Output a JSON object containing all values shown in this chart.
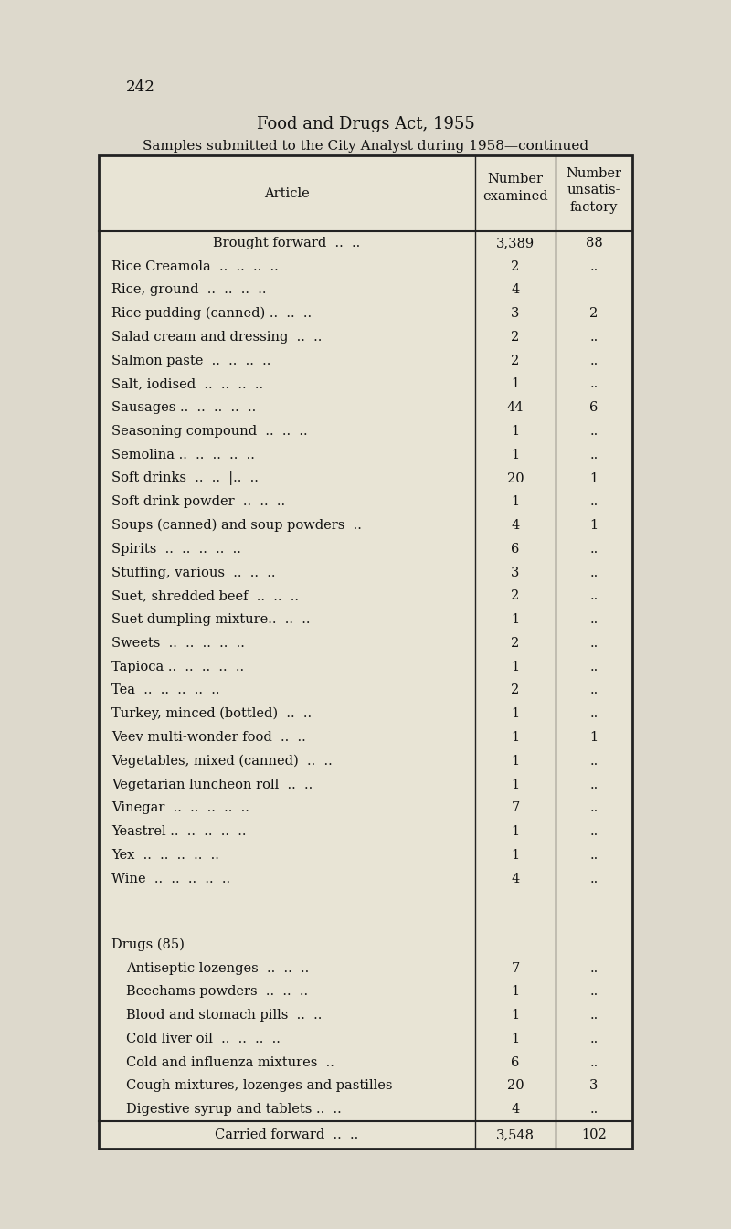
{
  "page_number": "242",
  "title_line1": "Food and Drugs Act, 1955",
  "title_line2": "Samples submitted to the City Analyst during 1958—continued",
  "rows": [
    {
      "article": "Brought forward",
      "dots": "  ..  ..",
      "examined": "3,389",
      "unsatisfactory": "88",
      "indent": 0,
      "bold": false,
      "center_article": true
    },
    {
      "article": "Rice Creamola",
      "dots": "  ..  ..  ..  ..",
      "examined": "2",
      "unsatisfactory": "..",
      "indent": 0,
      "bold": false,
      "center_article": false
    },
    {
      "article": "Rice, ground",
      "dots": "  ..  ..  ..  ..",
      "examined": "4",
      "unsatisfactory": "",
      "indent": 0,
      "bold": false,
      "center_article": false
    },
    {
      "article": "Rice pudding (canned) ..",
      "dots": "  ..  ..",
      "examined": "3",
      "unsatisfactory": "2",
      "indent": 0,
      "bold": false,
      "center_article": false
    },
    {
      "article": "Salad cream and dressing",
      "dots": "  ..  ..",
      "examined": "2",
      "unsatisfactory": "..",
      "indent": 0,
      "bold": false,
      "center_article": false
    },
    {
      "article": "Salmon paste",
      "dots": "  ..  ..  ..  ..",
      "examined": "2",
      "unsatisfactory": "..",
      "indent": 0,
      "bold": false,
      "center_article": false
    },
    {
      "article": "Salt, iodised",
      "dots": "  ..  ..  ..  ..",
      "examined": "1",
      "unsatisfactory": "..",
      "indent": 0,
      "bold": false,
      "center_article": false
    },
    {
      "article": "Sausages ..",
      "dots": "  ..  ..  ..  ..",
      "examined": "44",
      "unsatisfactory": "6",
      "indent": 0,
      "bold": false,
      "center_article": false
    },
    {
      "article": "Seasoning compound",
      "dots": "  ..  ..  ..",
      "examined": "1",
      "unsatisfactory": "..",
      "indent": 0,
      "bold": false,
      "center_article": false
    },
    {
      "article": "Semolina ..",
      "dots": "  ..  ..  ..  ..",
      "examined": "1",
      "unsatisfactory": "..",
      "indent": 0,
      "bold": false,
      "center_article": false
    },
    {
      "article": "Soft drinks",
      "dots": "  ..  ..  |..  ..",
      "examined": "20",
      "unsatisfactory": "1",
      "indent": 0,
      "bold": false,
      "center_article": false
    },
    {
      "article": "Soft drink powder",
      "dots": "  ..  ..  ..",
      "examined": "1",
      "unsatisfactory": "..",
      "indent": 0,
      "bold": false,
      "center_article": false
    },
    {
      "article": "Soups (canned) and soup powders",
      "dots": "  ..",
      "examined": "4",
      "unsatisfactory": "1",
      "indent": 0,
      "bold": false,
      "center_article": false
    },
    {
      "article": "Spirits",
      "dots": "  ..  ..  ..  ..  ..",
      "examined": "6",
      "unsatisfactory": "..",
      "indent": 0,
      "bold": false,
      "center_article": false
    },
    {
      "article": "Stuffing, various",
      "dots": "  ..  ..  ..",
      "examined": "3",
      "unsatisfactory": "..",
      "indent": 0,
      "bold": false,
      "center_article": false
    },
    {
      "article": "Suet, shredded beef",
      "dots": "  ..  ..  ..",
      "examined": "2",
      "unsatisfactory": "..",
      "indent": 0,
      "bold": false,
      "center_article": false
    },
    {
      "article": "Suet dumpling mixture..",
      "dots": "  ..  ..",
      "examined": "1",
      "unsatisfactory": "..",
      "indent": 0,
      "bold": false,
      "center_article": false
    },
    {
      "article": "Sweets",
      "dots": "  ..  ..  ..  ..  ..",
      "examined": "2",
      "unsatisfactory": "..",
      "indent": 0,
      "bold": false,
      "center_article": false
    },
    {
      "article": "Tapioca ..",
      "dots": "  ..  ..  ..  ..",
      "examined": "1",
      "unsatisfactory": "..",
      "indent": 0,
      "bold": false,
      "center_article": false
    },
    {
      "article": "Tea",
      "dots": "  ..  ..  ..  ..  ..",
      "examined": "2",
      "unsatisfactory": "..",
      "indent": 0,
      "bold": false,
      "center_article": false
    },
    {
      "article": "Turkey, minced (bottled)",
      "dots": "  ..  ..",
      "examined": "1",
      "unsatisfactory": "..",
      "indent": 0,
      "bold": false,
      "center_article": false
    },
    {
      "article": "Veev multi-wonder food",
      "dots": "  ..  ..",
      "examined": "1",
      "unsatisfactory": "1",
      "indent": 0,
      "bold": false,
      "center_article": false
    },
    {
      "article": "Vegetables, mixed (canned)",
      "dots": "  ..  ..",
      "examined": "1",
      "unsatisfactory": "..",
      "indent": 0,
      "bold": false,
      "center_article": false
    },
    {
      "article": "Vegetarian luncheon roll",
      "dots": "  ..  ..",
      "examined": "1",
      "unsatisfactory": "..",
      "indent": 0,
      "bold": false,
      "center_article": false
    },
    {
      "article": "Vinegar",
      "dots": "  ..  ..  ..  ..  ..",
      "examined": "7",
      "unsatisfactory": "..",
      "indent": 0,
      "bold": false,
      "center_article": false
    },
    {
      "article": "Yeastrel ..",
      "dots": "  ..  ..  ..  ..",
      "examined": "1",
      "unsatisfactory": "..",
      "indent": 0,
      "bold": false,
      "center_article": false
    },
    {
      "article": "Yex",
      "dots": "  ..  ..  ..  ..  ..",
      "examined": "1",
      "unsatisfactory": "..",
      "indent": 0,
      "bold": false,
      "center_article": false
    },
    {
      "article": "Wine",
      "dots": "  ..  ..  ..  ..  ..",
      "examined": "4",
      "unsatisfactory": "..",
      "indent": 0,
      "bold": false,
      "center_article": false
    },
    {
      "article": "",
      "dots": "",
      "examined": "",
      "unsatisfactory": "",
      "indent": 0,
      "bold": false,
      "center_article": false,
      "spacer": true
    },
    {
      "article": "Drugs (85)",
      "dots": "",
      "examined": "",
      "unsatisfactory": "",
      "indent": 0,
      "bold": false,
      "center_article": false,
      "section": true
    },
    {
      "article": "Antiseptic lozenges",
      "dots": "  ..  ..  ..",
      "examined": "7",
      "unsatisfactory": "..",
      "indent": 1,
      "bold": false,
      "center_article": false
    },
    {
      "article": "Beechams powders",
      "dots": "  ..  ..  ..",
      "examined": "1",
      "unsatisfactory": "..",
      "indent": 1,
      "bold": false,
      "center_article": false
    },
    {
      "article": "Blood and stomach pills",
      "dots": "  ..  ..",
      "examined": "1",
      "unsatisfactory": "..",
      "indent": 1,
      "bold": false,
      "center_article": false
    },
    {
      "article": "Cold liver oil",
      "dots": "  ..  ..  ..  ..",
      "examined": "1",
      "unsatisfactory": "..",
      "indent": 1,
      "bold": false,
      "center_article": false
    },
    {
      "article": "Cold and influenza mixtures",
      "dots": "  ..",
      "examined": "6",
      "unsatisfactory": "..",
      "indent": 1,
      "bold": false,
      "center_article": false
    },
    {
      "article": "Cough mixtures, lozenges and pastilles",
      "dots": "",
      "examined": "20",
      "unsatisfactory": "3",
      "indent": 1,
      "bold": false,
      "center_article": false
    },
    {
      "article": "Digestive syrup and tablets ..",
      "dots": "  ..",
      "examined": "4",
      "unsatisfactory": "..",
      "indent": 1,
      "bold": false,
      "center_article": false
    }
  ],
  "footer_row": {
    "article": "Carried forward",
    "dots": "  ..  ..",
    "examined": "3,548",
    "unsatisfactory": "102"
  },
  "bg_color": "#ddd9cc",
  "table_bg": "#e8e4d5",
  "text_color": "#111111",
  "font_size": 10.5,
  "header_font_size": 10.5
}
